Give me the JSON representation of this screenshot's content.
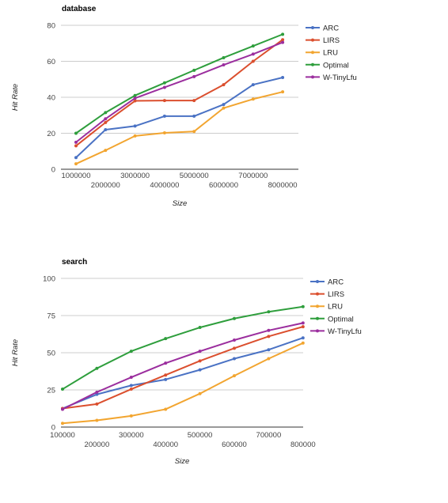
{
  "chart_data": [
    {
      "type": "line",
      "title": "database",
      "xlabel": "Size",
      "ylabel": "Hit Rate",
      "ylim": [
        0,
        80
      ],
      "yticks": [
        "0",
        "20",
        "40",
        "60",
        "80"
      ],
      "x": [
        1000000,
        2000000,
        3000000,
        4000000,
        5000000,
        6000000,
        7000000,
        8000000
      ],
      "xticks": [
        "1000000",
        "2000000",
        "3000000",
        "4000000",
        "5000000",
        "6000000",
        "7000000",
        "8000000"
      ],
      "grid": true,
      "legend": "right",
      "series": [
        {
          "name": "ARC",
          "color": "#4a72c4",
          "values": [
            6.5,
            22,
            24,
            29.5,
            29.5,
            36,
            47,
            51
          ]
        },
        {
          "name": "LIRS",
          "color": "#db4f2e",
          "values": [
            13,
            26,
            38,
            38.2,
            38.2,
            47,
            60,
            72
          ]
        },
        {
          "name": "LRU",
          "color": "#f2a530",
          "values": [
            3,
            10.5,
            18.5,
            20.2,
            21,
            34,
            39,
            43
          ]
        },
        {
          "name": "Optimal",
          "color": "#2e9e3c",
          "values": [
            20,
            31.5,
            41,
            48,
            55,
            62,
            68.5,
            75
          ]
        },
        {
          "name": "W-TinyLfu",
          "color": "#9b2e9e",
          "values": [
            15,
            28,
            39.5,
            45.5,
            51.5,
            58,
            64,
            70.5
          ]
        }
      ]
    },
    {
      "type": "line",
      "title": "search",
      "xlabel": "Size",
      "ylabel": "Hit Rate",
      "ylim": [
        0,
        100
      ],
      "yticks": [
        "0",
        "25",
        "50",
        "75",
        "100"
      ],
      "x": [
        100000,
        200000,
        300000,
        400000,
        500000,
        600000,
        700000,
        800000
      ],
      "xticks": [
        "100000",
        "200000",
        "300000",
        "400000",
        "500000",
        "600000",
        "700000",
        "800000"
      ],
      "grid": true,
      "legend": "right",
      "series": [
        {
          "name": "ARC",
          "color": "#4a72c4",
          "values": [
            12.5,
            22,
            28,
            32,
            38.5,
            46,
            52,
            60
          ]
        },
        {
          "name": "LIRS",
          "color": "#db4f2e",
          "values": [
            12.5,
            15.5,
            25.5,
            35,
            44.5,
            53,
            61,
            67.5
          ]
        },
        {
          "name": "LRU",
          "color": "#f2a530",
          "values": [
            2.5,
            4.5,
            7.5,
            12,
            22.5,
            34.5,
            46,
            56.5
          ]
        },
        {
          "name": "Optimal",
          "color": "#2e9e3c",
          "values": [
            25.5,
            39.5,
            51,
            59.5,
            67,
            73,
            77.5,
            81
          ]
        },
        {
          "name": "W-TinyLfu",
          "color": "#9b2e9e",
          "values": [
            12,
            23.5,
            33.5,
            43,
            51,
            58.5,
            65,
            70
          ]
        }
      ]
    }
  ]
}
